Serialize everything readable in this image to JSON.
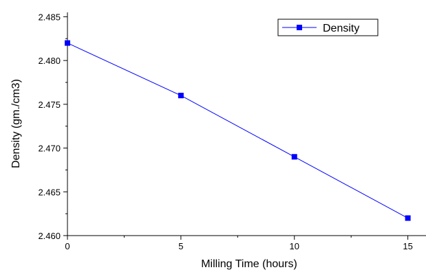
{
  "chart_data": {
    "type": "line",
    "xlabel": "Milling Time (hours)",
    "ylabel": "Density (gm./cm3)",
    "xlim": [
      0,
      15.8
    ],
    "ylim": [
      2.46,
      2.4855
    ],
    "x_ticks": [
      0,
      5,
      10,
      15
    ],
    "x_tick_labels": [
      "0",
      "5",
      "10",
      "15"
    ],
    "x_minor_ticks": [
      2.5,
      7.5,
      12.5
    ],
    "y_ticks": [
      2.46,
      2.465,
      2.47,
      2.475,
      2.48,
      2.485
    ],
    "y_tick_labels": [
      "2.460",
      "2.465",
      "2.470",
      "2.475",
      "2.480",
      "2.485"
    ],
    "y_minor_ticks": [
      2.4625,
      2.4675,
      2.4725,
      2.4775,
      2.4825
    ],
    "grid": false,
    "legend_position": "top-right",
    "series": [
      {
        "name": "Density",
        "color": "#0000ff",
        "marker": "square",
        "x": [
          0,
          5,
          10,
          15
        ],
        "y": [
          2.482,
          2.476,
          2.469,
          2.462
        ]
      }
    ]
  }
}
